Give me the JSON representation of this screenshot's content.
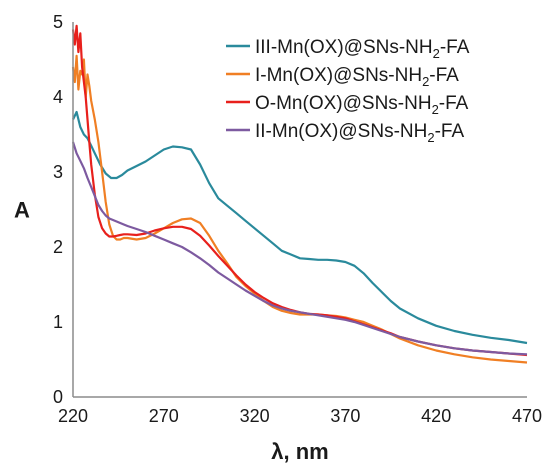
{
  "chart_data": {
    "type": "line",
    "xlabel": "λ, nm",
    "ylabel": "A",
    "xlim": [
      220,
      470
    ],
    "ylim": [
      0,
      5
    ],
    "x_ticks": [
      "220",
      "270",
      "320",
      "370",
      "420",
      "470"
    ],
    "y_ticks": [
      "0",
      "1",
      "2",
      "3",
      "4",
      "5"
    ],
    "grid": false,
    "legend_position": "top-right",
    "series": [
      {
        "name_prefix": "III-Mn(OX)@SNs-NH",
        "name_sub": "2",
        "name_suffix": "-FA",
        "color": "#2a8a9c",
        "x": [
          220,
          222,
          224,
          226,
          228,
          230,
          232,
          235,
          238,
          241,
          244,
          247,
          250,
          255,
          260,
          265,
          270,
          275,
          280,
          285,
          290,
          295,
          300,
          305,
          310,
          315,
          320,
          325,
          330,
          335,
          340,
          345,
          350,
          355,
          360,
          365,
          370,
          375,
          380,
          385,
          390,
          395,
          400,
          410,
          420,
          430,
          440,
          450,
          460,
          470
        ],
        "y": [
          3.7,
          3.8,
          3.6,
          3.5,
          3.45,
          3.35,
          3.25,
          3.1,
          2.98,
          2.92,
          2.92,
          2.96,
          3.02,
          3.08,
          3.14,
          3.22,
          3.3,
          3.34,
          3.33,
          3.3,
          3.1,
          2.85,
          2.65,
          2.55,
          2.45,
          2.35,
          2.25,
          2.15,
          2.05,
          1.95,
          1.9,
          1.85,
          1.84,
          1.83,
          1.83,
          1.82,
          1.8,
          1.75,
          1.65,
          1.52,
          1.4,
          1.28,
          1.18,
          1.05,
          0.95,
          0.88,
          0.83,
          0.79,
          0.76,
          0.72
        ]
      },
      {
        "name_prefix": "I-Mn(OX)@SNs-NH",
        "name_sub": "2",
        "name_suffix": "-FA",
        "color": "#f07f24",
        "x": [
          220,
          221,
          222,
          223,
          224,
          225,
          226,
          227,
          228,
          229,
          230,
          232,
          234,
          236,
          238,
          240,
          242,
          244,
          246,
          248,
          250,
          255,
          260,
          265,
          270,
          275,
          280,
          285,
          290,
          295,
          300,
          305,
          310,
          315,
          320,
          325,
          330,
          335,
          340,
          345,
          350,
          355,
          360,
          365,
          370,
          375,
          380,
          385,
          390,
          395,
          400,
          410,
          420,
          430,
          440,
          450,
          460,
          470
        ],
        "y": [
          4.4,
          4.2,
          4.55,
          4.1,
          4.35,
          4.3,
          4.5,
          4.0,
          4.3,
          4.15,
          3.95,
          3.7,
          3.4,
          3.0,
          2.6,
          2.3,
          2.15,
          2.1,
          2.1,
          2.12,
          2.12,
          2.1,
          2.12,
          2.18,
          2.25,
          2.32,
          2.37,
          2.38,
          2.32,
          2.15,
          1.95,
          1.78,
          1.6,
          1.48,
          1.38,
          1.28,
          1.2,
          1.15,
          1.12,
          1.1,
          1.1,
          1.1,
          1.09,
          1.08,
          1.06,
          1.03,
          1.0,
          0.95,
          0.9,
          0.84,
          0.78,
          0.69,
          0.62,
          0.57,
          0.53,
          0.5,
          0.48,
          0.46
        ]
      },
      {
        "name_prefix": "O-Mn(OX)@SNs-NH",
        "name_sub": "2",
        "name_suffix": "-FA",
        "color": "#e8201c",
        "x": [
          220,
          221,
          222,
          223,
          224,
          225,
          226,
          227,
          228,
          229,
          230,
          232,
          234,
          236,
          238,
          240,
          242,
          244,
          246,
          248,
          250,
          255,
          260,
          265,
          270,
          275,
          280,
          285,
          290,
          295,
          300,
          305,
          310,
          315,
          320,
          325,
          330,
          335,
          340,
          345,
          350,
          355,
          360,
          365,
          370,
          375,
          380,
          385,
          390,
          395,
          400,
          410,
          420,
          430,
          440,
          450,
          460,
          470
        ],
        "y": [
          4.9,
          4.7,
          4.95,
          4.6,
          4.85,
          4.4,
          4.2,
          4.0,
          3.7,
          3.4,
          3.1,
          2.7,
          2.4,
          2.25,
          2.18,
          2.14,
          2.14,
          2.15,
          2.16,
          2.17,
          2.17,
          2.16,
          2.18,
          2.22,
          2.25,
          2.27,
          2.27,
          2.24,
          2.15,
          2.02,
          1.88,
          1.75,
          1.62,
          1.5,
          1.4,
          1.32,
          1.25,
          1.2,
          1.16,
          1.13,
          1.11,
          1.1,
          1.09,
          1.07,
          1.05,
          1.01,
          0.97,
          0.93,
          0.89,
          0.85,
          0.8,
          0.74,
          0.69,
          0.65,
          0.62,
          0.6,
          0.58,
          0.56
        ]
      },
      {
        "name_prefix": "II-Mn(OX)@SNs-NH",
        "name_sub": "2",
        "name_suffix": "-FA",
        "color": "#7d5aa0",
        "x": [
          220,
          222,
          224,
          226,
          228,
          230,
          232,
          234,
          236,
          238,
          240,
          242,
          244,
          246,
          248,
          250,
          255,
          260,
          265,
          270,
          275,
          280,
          285,
          290,
          295,
          300,
          305,
          310,
          315,
          320,
          325,
          330,
          335,
          340,
          345,
          350,
          355,
          360,
          365,
          370,
          375,
          380,
          385,
          390,
          395,
          400,
          410,
          420,
          430,
          440,
          450,
          460,
          470
        ],
        "y": [
          3.4,
          3.25,
          3.15,
          3.05,
          2.92,
          2.8,
          2.68,
          2.56,
          2.48,
          2.42,
          2.38,
          2.36,
          2.34,
          2.32,
          2.3,
          2.28,
          2.24,
          2.2,
          2.15,
          2.1,
          2.05,
          2.0,
          1.93,
          1.85,
          1.76,
          1.66,
          1.58,
          1.5,
          1.42,
          1.35,
          1.28,
          1.22,
          1.18,
          1.15,
          1.13,
          1.11,
          1.09,
          1.07,
          1.05,
          1.03,
          1.0,
          0.96,
          0.92,
          0.88,
          0.84,
          0.8,
          0.74,
          0.69,
          0.65,
          0.62,
          0.6,
          0.58,
          0.57
        ]
      }
    ]
  }
}
